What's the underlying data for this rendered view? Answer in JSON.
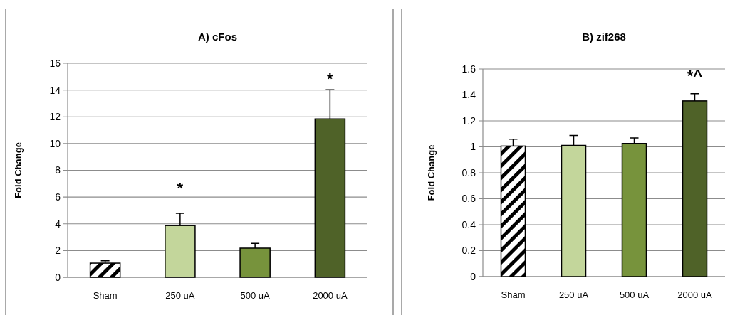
{
  "chart_data": [
    {
      "type": "bar",
      "title": "A) cFos",
      "ylabel": "Fold Change",
      "categories": [
        "Sham",
        "250 uA",
        "500 uA",
        "2000 uA"
      ],
      "colors": [
        "#000000",
        "#c3d69b",
        "#77933c",
        "#4f6228"
      ],
      "values": [
        1.06,
        3.87,
        2.18,
        11.84
      ],
      "errors": [
        [
          1.06,
          1.24
        ],
        [
          3.87,
          4.79
        ],
        [
          2.18,
          2.54
        ],
        [
          11.84,
          14.02
        ]
      ],
      "ylim": [
        0,
        16
      ],
      "yticks": [
        0,
        2,
        4,
        6,
        8,
        10,
        12,
        14,
        16
      ],
      "grid": "y",
      "annotations": [
        "*",
        "*"
      ]
    },
    {
      "type": "bar",
      "title": "B) zif268",
      "ylabel": "Fold Change",
      "categories": [
        "Sham",
        "250 uA",
        "500 uA",
        "2000 uA"
      ],
      "colors": [
        "#000000",
        "#c3d69b",
        "#77933c",
        "#4f6228"
      ],
      "values": [
        1.006,
        1.011,
        1.026,
        1.354
      ],
      "errors": [
        [
          1.006,
          1.059
        ],
        [
          1.011,
          1.088
        ],
        [
          1.026,
          1.068
        ],
        [
          1.354,
          1.409
        ]
      ],
      "ylim": [
        0,
        1.6
      ],
      "yticks": [
        0,
        {
          "value": 0.2,
          "label": "0.2"
        },
        {
          "value": 0.4,
          "label": "0.4"
        },
        {
          "value": 0.6,
          "label": "0.6"
        },
        {
          "value": 0.8,
          "label": "0.8"
        },
        1,
        {
          "value": 1.2,
          "label": "1.2"
        },
        {
          "value": 1.4,
          "label": "1.4"
        },
        {
          "value": 1.6,
          "label": "1.6"
        }
      ],
      "grid": "y",
      "annotations": [
        "*^"
      ]
    }
  ]
}
